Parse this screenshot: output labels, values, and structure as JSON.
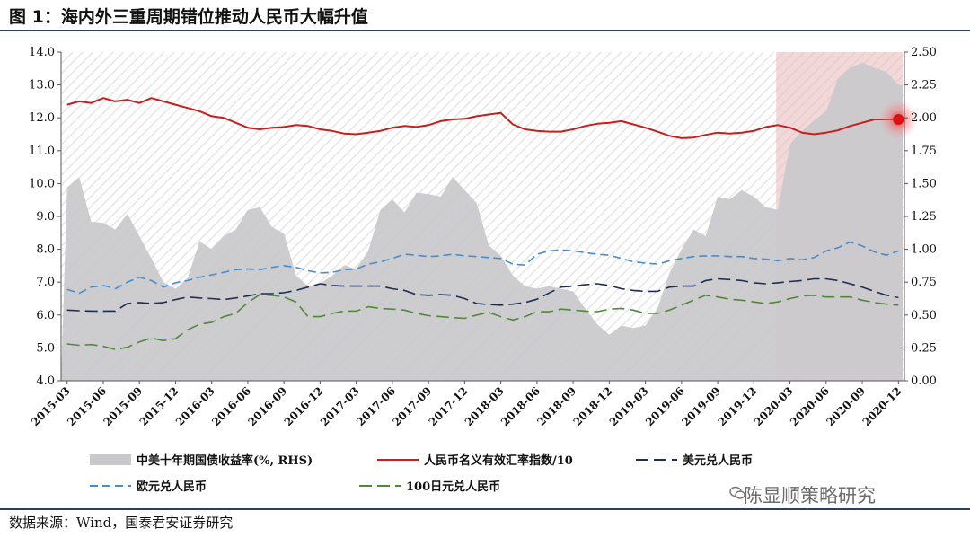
{
  "figure": {
    "title": "图 1：海内外三重周期错位推动人民币大幅升值",
    "source": "数据来源：Wind，国泰君安证券研究",
    "watermark": "陈显顺策略研究"
  },
  "colors": {
    "rule": "#2b3d6b",
    "spread_area": "#c9c9cc",
    "cny_neer": "#c81e1e",
    "usd_cny": "#1f2d55",
    "eur_cny": "#4a8ccb",
    "jpy_cny": "#4f8a3a",
    "highlight": "#e8b8b8"
  },
  "chart_data": {
    "type": "line",
    "title": "",
    "x": [
      "2015-03",
      "2015-04",
      "2015-05",
      "2015-06",
      "2015-07",
      "2015-08",
      "2015-09",
      "2015-10",
      "2015-11",
      "2015-12",
      "2016-01",
      "2016-02",
      "2016-03",
      "2016-04",
      "2016-05",
      "2016-06",
      "2016-07",
      "2016-08",
      "2016-09",
      "2016-10",
      "2016-11",
      "2016-12",
      "2017-01",
      "2017-02",
      "2017-03",
      "2017-04",
      "2017-05",
      "2017-06",
      "2017-07",
      "2017-08",
      "2017-09",
      "2017-10",
      "2017-11",
      "2017-12",
      "2018-01",
      "2018-02",
      "2018-03",
      "2018-04",
      "2018-05",
      "2018-06",
      "2018-07",
      "2018-08",
      "2018-09",
      "2018-10",
      "2018-11",
      "2018-12",
      "2019-01",
      "2019-02",
      "2019-03",
      "2019-04",
      "2019-05",
      "2019-06",
      "2019-07",
      "2019-08",
      "2019-09",
      "2019-10",
      "2019-11",
      "2019-12",
      "2020-01",
      "2020-02",
      "2020-03",
      "2020-04",
      "2020-05",
      "2020-06",
      "2020-07",
      "2020-08",
      "2020-09",
      "2020-10",
      "2020-11",
      "2020-12"
    ],
    "x_tick_labels": [
      "2015-03",
      "2015-06",
      "2015-09",
      "2015-12",
      "2016-03",
      "2016-06",
      "2016-09",
      "2016-12",
      "2017-03",
      "2017-06",
      "2017-09",
      "2017-12",
      "2018-03",
      "2018-06",
      "2018-09",
      "2018-12",
      "2019-03",
      "2019-06",
      "2019-09",
      "2019-12",
      "2020-03",
      "2020-06",
      "2020-09",
      "2020-12"
    ],
    "y_left": {
      "min": 4.0,
      "max": 14.0,
      "ticks": [
        "4.0",
        "5.0",
        "6.0",
        "7.0",
        "8.0",
        "9.0",
        "10.0",
        "11.0",
        "12.0",
        "13.0",
        "14.0"
      ]
    },
    "y_right": {
      "min": 0.0,
      "max": 2.5,
      "ticks": [
        "0.00",
        "0.25",
        "0.50",
        "0.75",
        "1.00",
        "1.25",
        "1.50",
        "1.75",
        "2.00",
        "2.25",
        "2.50"
      ]
    },
    "highlight_range": [
      "2020-02",
      "2020-12"
    ],
    "highlight_marker": {
      "series": "人民币名义有效汇率指数/10",
      "x": "2020-12",
      "y": 11.95
    },
    "legend_position": "bottom",
    "series": [
      {
        "name": "中美十年期国债收益率(%, RHS)",
        "kind": "area",
        "axis": "right",
        "color_key": "spread_area",
        "values": [
          1.47,
          1.55,
          1.21,
          1.2,
          1.15,
          1.27,
          1.1,
          0.93,
          0.75,
          0.7,
          0.78,
          1.06,
          1.0,
          1.1,
          1.15,
          1.3,
          1.32,
          1.17,
          1.12,
          0.8,
          0.72,
          0.74,
          0.8,
          0.88,
          0.85,
          0.99,
          1.3,
          1.38,
          1.28,
          1.43,
          1.42,
          1.4,
          1.55,
          1.45,
          1.35,
          1.03,
          0.95,
          0.8,
          0.72,
          0.7,
          0.72,
          0.7,
          0.68,
          0.55,
          0.43,
          0.35,
          0.42,
          0.4,
          0.42,
          0.55,
          0.82,
          1.0,
          1.15,
          1.1,
          1.4,
          1.38,
          1.45,
          1.4,
          1.32,
          1.3,
          1.8,
          1.9,
          1.98,
          2.05,
          2.3,
          2.38,
          2.42,
          2.38,
          2.35,
          2.25
        ]
      },
      {
        "name": "人民币名义有效汇率指数/10",
        "kind": "line",
        "axis": "left",
        "color_key": "cny_neer",
        "dash": "solid",
        "values": [
          12.4,
          12.5,
          12.45,
          12.6,
          12.5,
          12.55,
          12.45,
          12.6,
          12.5,
          12.4,
          12.3,
          12.2,
          12.05,
          12.0,
          11.85,
          11.7,
          11.65,
          11.7,
          11.72,
          11.78,
          11.75,
          11.65,
          11.6,
          11.52,
          11.5,
          11.55,
          11.6,
          11.7,
          11.75,
          11.72,
          11.78,
          11.9,
          11.95,
          11.97,
          12.05,
          12.1,
          12.15,
          11.8,
          11.65,
          11.6,
          11.58,
          11.58,
          11.65,
          11.75,
          11.82,
          11.85,
          11.9,
          11.8,
          11.7,
          11.58,
          11.45,
          11.38,
          11.4,
          11.48,
          11.55,
          11.52,
          11.55,
          11.6,
          11.72,
          11.78,
          11.7,
          11.55,
          11.5,
          11.55,
          11.62,
          11.75,
          11.85,
          11.95,
          11.95,
          11.95
        ]
      },
      {
        "name": "美元兑人民币",
        "kind": "line",
        "axis": "left",
        "color_key": "usd_cny",
        "dash": "long",
        "values": [
          6.15,
          6.13,
          6.12,
          6.12,
          6.12,
          6.35,
          6.38,
          6.35,
          6.38,
          6.47,
          6.55,
          6.52,
          6.5,
          6.47,
          6.52,
          6.58,
          6.65,
          6.65,
          6.68,
          6.75,
          6.85,
          6.95,
          6.9,
          6.88,
          6.88,
          6.88,
          6.88,
          6.8,
          6.75,
          6.62,
          6.6,
          6.62,
          6.6,
          6.5,
          6.35,
          6.32,
          6.3,
          6.33,
          6.38,
          6.48,
          6.67,
          6.85,
          6.88,
          6.92,
          6.95,
          6.9,
          6.8,
          6.75,
          6.72,
          6.72,
          6.85,
          6.88,
          6.88,
          7.05,
          7.1,
          7.08,
          7.05,
          6.98,
          6.95,
          6.98,
          7.02,
          7.05,
          7.1,
          7.1,
          7.05,
          6.95,
          6.85,
          6.72,
          6.6,
          6.53
        ]
      },
      {
        "name": "欧元兑人民币",
        "kind": "line",
        "axis": "left",
        "color_key": "eur_cny",
        "dash": "medium",
        "values": [
          6.78,
          6.66,
          6.85,
          6.9,
          6.8,
          7.0,
          7.15,
          7.05,
          6.85,
          6.98,
          7.05,
          7.15,
          7.22,
          7.3,
          7.38,
          7.4,
          7.38,
          7.45,
          7.5,
          7.45,
          7.35,
          7.28,
          7.3,
          7.38,
          7.4,
          7.55,
          7.62,
          7.72,
          7.85,
          7.82,
          7.78,
          7.8,
          7.85,
          7.8,
          7.78,
          7.75,
          7.72,
          7.55,
          7.52,
          7.85,
          7.95,
          7.98,
          7.95,
          7.9,
          7.85,
          7.82,
          7.72,
          7.62,
          7.58,
          7.55,
          7.65,
          7.72,
          7.78,
          7.8,
          7.8,
          7.78,
          7.78,
          7.72,
          7.7,
          7.65,
          7.72,
          7.68,
          7.75,
          7.95,
          8.05,
          8.22,
          8.1,
          7.92,
          7.82,
          7.95
        ]
      },
      {
        "name": "100日元兑人民币",
        "kind": "line",
        "axis": "left",
        "color_key": "jpy_cny",
        "dash": "long",
        "values": [
          5.12,
          5.08,
          5.1,
          5.05,
          4.95,
          5.02,
          5.18,
          5.3,
          5.22,
          5.28,
          5.55,
          5.72,
          5.78,
          5.95,
          6.05,
          6.38,
          6.62,
          6.6,
          6.55,
          6.4,
          5.95,
          5.95,
          6.05,
          6.12,
          6.12,
          6.25,
          6.2,
          6.18,
          6.15,
          6.05,
          5.98,
          5.95,
          5.92,
          5.9,
          6.0,
          6.08,
          5.95,
          5.85,
          5.95,
          6.1,
          6.1,
          6.18,
          6.15,
          6.12,
          6.1,
          6.18,
          6.2,
          6.15,
          6.05,
          6.05,
          6.15,
          6.3,
          6.45,
          6.6,
          6.55,
          6.48,
          6.45,
          6.4,
          6.35,
          6.4,
          6.5,
          6.58,
          6.6,
          6.55,
          6.55,
          6.55,
          6.45,
          6.38,
          6.33,
          6.3
        ]
      }
    ]
  }
}
